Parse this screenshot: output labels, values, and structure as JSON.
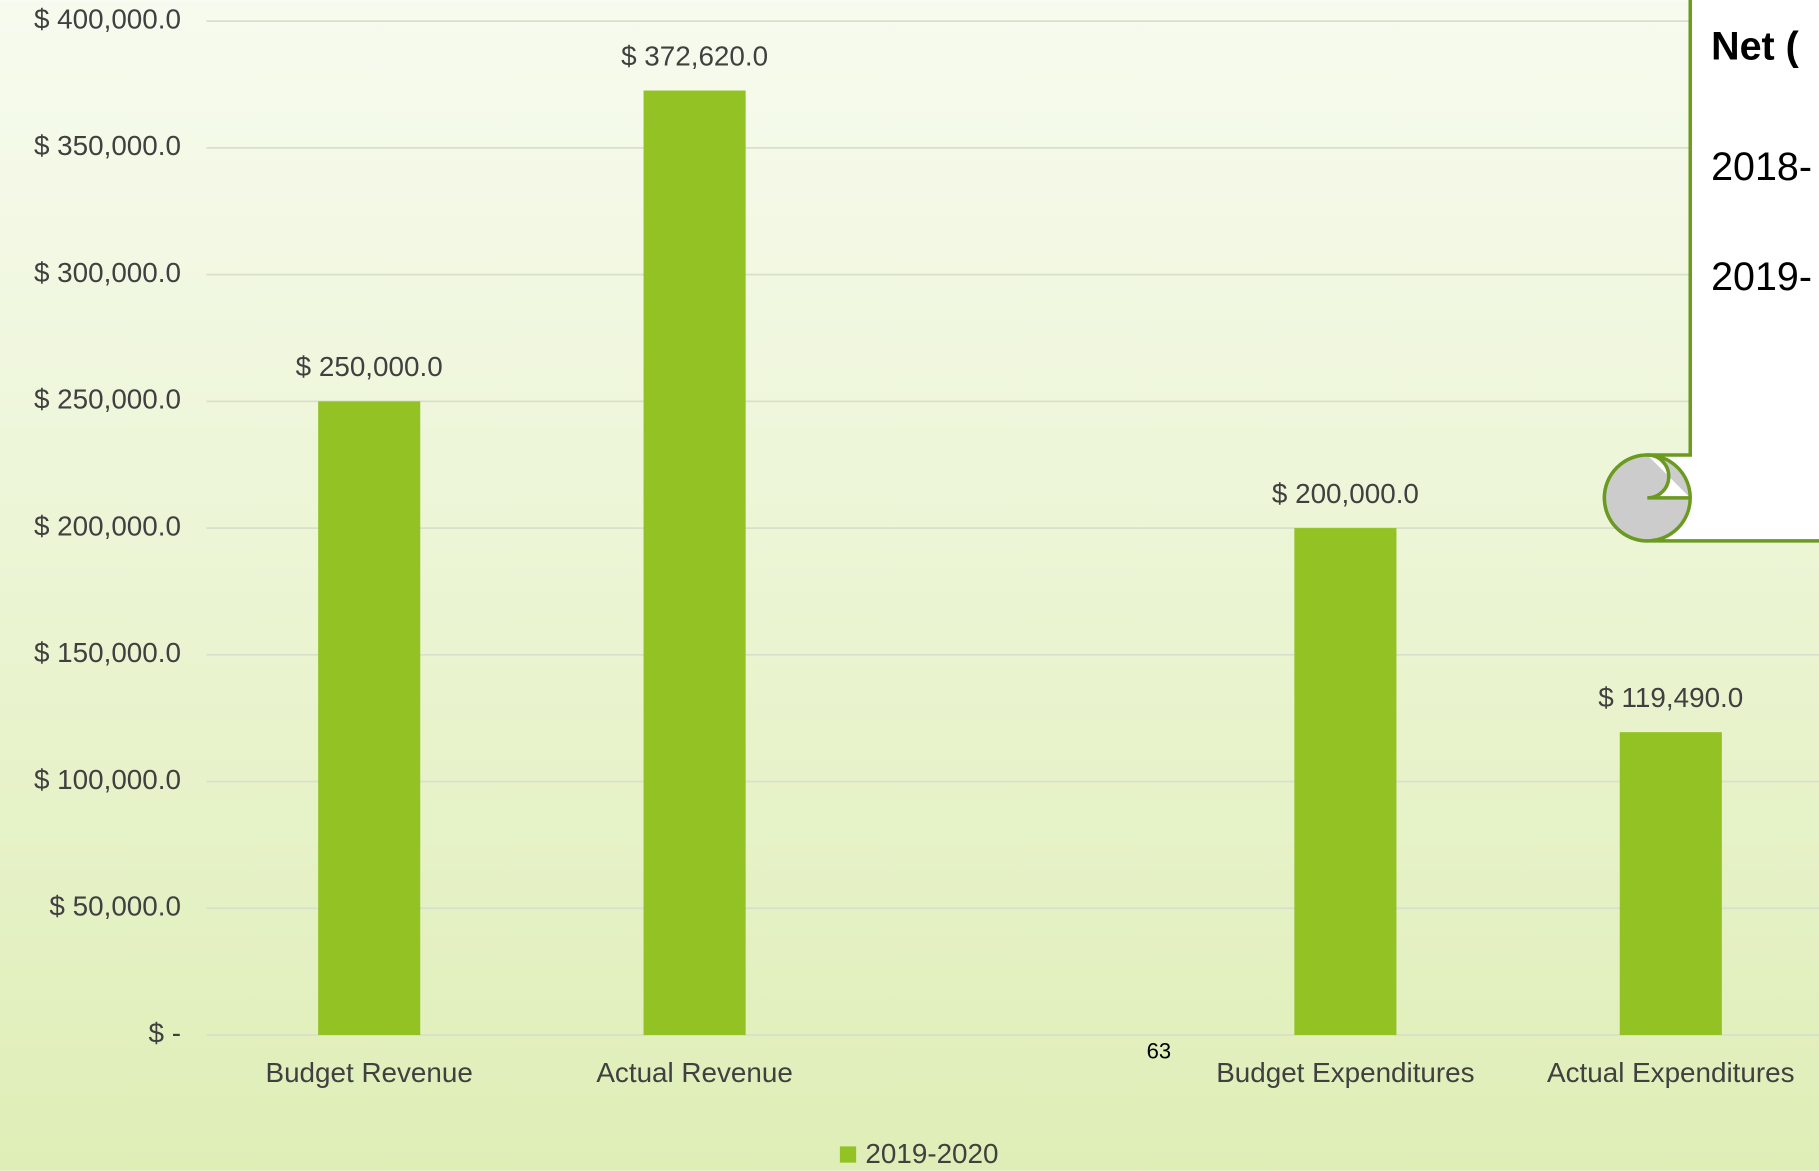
{
  "chart_data": {
    "type": "bar",
    "categories": [
      "Budget Revenue",
      "Actual Revenue",
      null,
      "Budget Expenditures",
      "Actual Expenditures"
    ],
    "series": [
      {
        "name": "2019-2020",
        "color": "#93c225",
        "values": [
          250000,
          372620,
          null,
          200000,
          119490
        ],
        "value_labels": [
          "$ 250,000.0",
          "$ 372,620.0",
          null,
          "$ 200,000.0",
          "$ 119,490.0"
        ]
      }
    ],
    "ylim": [
      0,
      400000
    ],
    "yticks": [
      {
        "value": 0,
        "label": "$ -"
      },
      {
        "value": 50000,
        "label": "$ 50,000.0"
      },
      {
        "value": 100000,
        "label": "$ 100,000.0"
      },
      {
        "value": 150000,
        "label": "$ 150,000.0"
      },
      {
        "value": 200000,
        "label": "$ 200,000.0"
      },
      {
        "value": 250000,
        "label": "$ 250,000.0"
      },
      {
        "value": 300000,
        "label": "$ 300,000.0"
      },
      {
        "value": 350000,
        "label": "$ 350,000.0"
      },
      {
        "value": 400000,
        "label": "$ 400,000.0"
      }
    ],
    "grid": true,
    "legend": "bottom"
  },
  "page_number": "63",
  "callout": {
    "title": "Net (",
    "lines": [
      "2018-",
      "2019-"
    ]
  }
}
